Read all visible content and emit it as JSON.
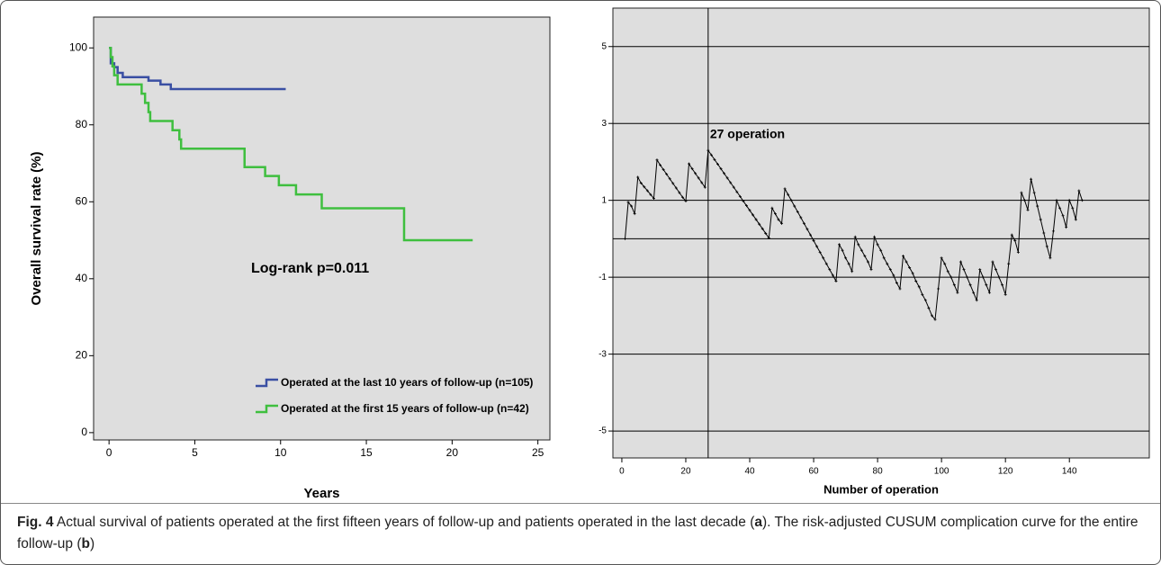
{
  "chart_data": [
    {
      "type": "step",
      "xlabel": "Years",
      "ylabel": "Overall survival rate (%)",
      "xlim": [
        -0.9,
        25.7
      ],
      "ylim": [
        -1.9,
        108
      ],
      "xticks": [
        0,
        5,
        10,
        15,
        20,
        25
      ],
      "yticks": [
        0,
        20,
        40,
        60,
        80,
        100
      ],
      "annotation": "Log-rank p=0.011",
      "series": [
        {
          "name": "Operated at the last 10 years of follow-up (n=105)",
          "color": "#3a4fa3",
          "x": [
            0,
            0.1,
            0.3,
            0.5,
            0.8,
            2.3,
            3.0,
            3.6,
            10.3
          ],
          "values": [
            100,
            96,
            95,
            93.5,
            92.4,
            91.5,
            90.5,
            89.3,
            89.3
          ]
        },
        {
          "name": "Operated at the first 15 years of follow-up (n=42)",
          "color": "#3fbf3f",
          "x": [
            0,
            0.1,
            0.2,
            0.3,
            0.5,
            1.9,
            2.1,
            2.3,
            2.4,
            3.7,
            4.1,
            4.2,
            7.9,
            9.1,
            9.9,
            10.9,
            12.4,
            17.2,
            21.2
          ],
          "values": [
            100,
            97.6,
            95.2,
            92.9,
            90.5,
            88.1,
            85.7,
            83.3,
            81,
            78.6,
            76.2,
            73.8,
            69,
            66.7,
            64.3,
            61.9,
            58.3,
            50,
            50
          ]
        }
      ]
    },
    {
      "type": "line",
      "xlabel": "Number of operation",
      "xlim": [
        -2.8,
        165
      ],
      "ylim": [
        -5.7,
        6.0
      ],
      "xticks": [
        0,
        20,
        40,
        60,
        80,
        100,
        120,
        140
      ],
      "yticks": [
        5,
        3,
        1,
        -1,
        -3,
        -5
      ],
      "grid": true,
      "refline": 0,
      "vline": 27,
      "vline_label": "27 operation",
      "series": [
        {
          "color": "#000000",
          "x": [
            1,
            2,
            3,
            4,
            5,
            6,
            7,
            8,
            9,
            10,
            11,
            12,
            13,
            14,
            15,
            16,
            17,
            18,
            19,
            20,
            21,
            22,
            23,
            24,
            25,
            26,
            27,
            28,
            29,
            30,
            31,
            32,
            33,
            34,
            35,
            36,
            37,
            38,
            39,
            40,
            41,
            42,
            43,
            44,
            45,
            46,
            47,
            48,
            49,
            50,
            51,
            52,
            53,
            54,
            55,
            56,
            57,
            58,
            59,
            60,
            61,
            62,
            63,
            64,
            65,
            66,
            67,
            68,
            69,
            70,
            71,
            72,
            73,
            74,
            75,
            76,
            77,
            78,
            79,
            80,
            81,
            82,
            83,
            84,
            85,
            86,
            87,
            88,
            89,
            90,
            91,
            92,
            93,
            94,
            95,
            96,
            97,
            98,
            99,
            100,
            101,
            102,
            103,
            104,
            105,
            106,
            107,
            108,
            109,
            110,
            111,
            112,
            113,
            114,
            115,
            116,
            117,
            118,
            119,
            120,
            121,
            122,
            123,
            124,
            125,
            126,
            127,
            128,
            129,
            130,
            131,
            132,
            133,
            134,
            135,
            136,
            137,
            138,
            139,
            140,
            141,
            142,
            143,
            144
          ],
          "values": [
            0,
            0.95,
            0.85,
            0.65,
            1.6,
            1.45,
            1.35,
            1.25,
            1.15,
            1.05,
            2.05,
            1.92,
            1.8,
            1.68,
            1.56,
            1.44,
            1.32,
            1.2,
            1.08,
            0.98,
            1.95,
            1.82,
            1.7,
            1.58,
            1.46,
            1.34,
            2.3,
            2.18,
            2.06,
            1.94,
            1.82,
            1.7,
            1.58,
            1.46,
            1.34,
            1.22,
            1.1,
            0.98,
            0.86,
            0.74,
            0.62,
            0.5,
            0.38,
            0.26,
            0.14,
            0.02,
            0.8,
            0.65,
            0.5,
            0.4,
            1.3,
            1.15,
            1.0,
            0.85,
            0.7,
            0.55,
            0.4,
            0.25,
            0.1,
            -0.05,
            -0.2,
            -0.35,
            -0.5,
            -0.65,
            -0.8,
            -0.95,
            -1.1,
            -0.15,
            -0.3,
            -0.5,
            -0.65,
            -0.85,
            0.05,
            -0.15,
            -0.3,
            -0.45,
            -0.6,
            -0.8,
            0.05,
            -0.15,
            -0.3,
            -0.5,
            -0.65,
            -0.8,
            -0.95,
            -1.15,
            -1.3,
            -0.45,
            -0.6,
            -0.75,
            -0.9,
            -1.1,
            -1.25,
            -1.45,
            -1.6,
            -1.8,
            -2.0,
            -2.1,
            -1.3,
            -0.5,
            -0.65,
            -0.85,
            -1.0,
            -1.2,
            -1.4,
            -0.6,
            -0.8,
            -1.0,
            -1.2,
            -1.4,
            -1.6,
            -0.8,
            -1.0,
            -1.2,
            -1.4,
            -0.6,
            -0.8,
            -1.0,
            -1.2,
            -1.45,
            -0.65,
            0.1,
            -0.05,
            -0.35,
            1.2,
            1.0,
            0.75,
            1.55,
            1.2,
            0.85,
            0.5,
            0.15,
            -0.2,
            -0.5,
            0.2,
            1.0,
            0.8,
            0.6,
            0.3,
            1.0,
            0.8,
            0.5,
            1.25,
            1.0
          ]
        }
      ]
    }
  ],
  "caption": [
    {
      "text": "Fig. 4",
      "bold": true
    },
    {
      "text": " Actual survival of patients operated at the first fifteen years of follow-up and patients operated in the last decade ("
    },
    {
      "text": "a",
      "bold": true
    },
    {
      "text": "). The risk-adjusted CUSUM complication curve for the entire follow-up ("
    },
    {
      "text": "b",
      "bold": true
    },
    {
      "text": ")"
    }
  ]
}
